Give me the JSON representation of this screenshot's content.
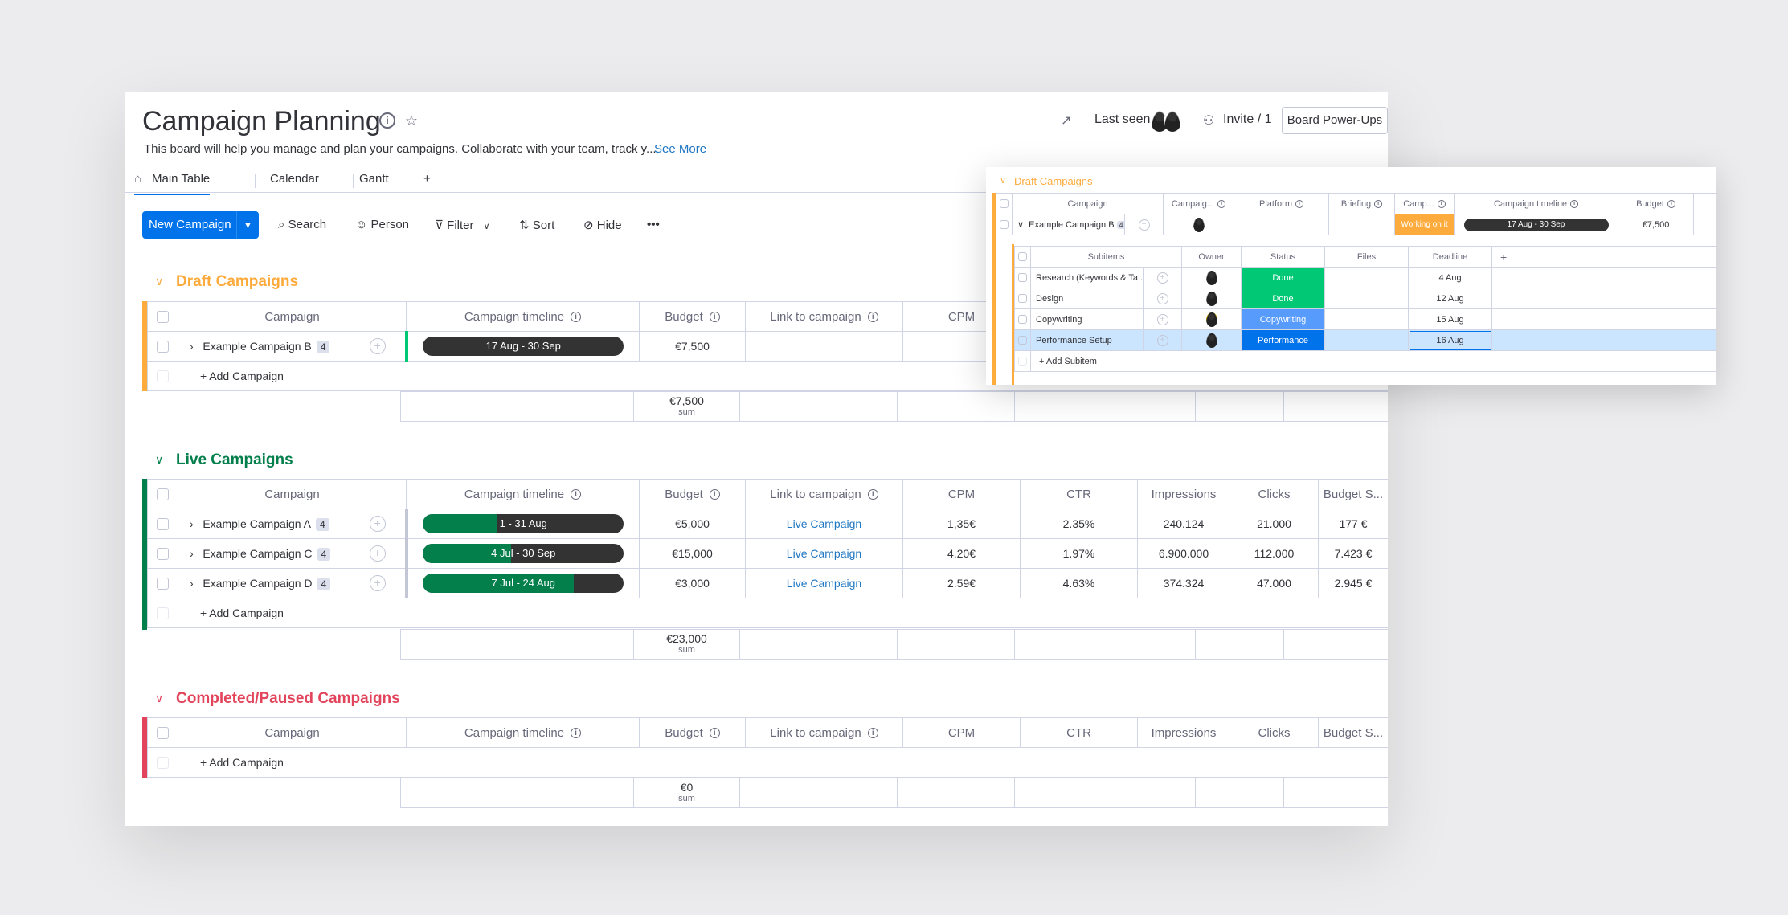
{
  "header": {
    "title": "Campaign Planning",
    "description": "This board will help you manage and plan your campaigns. Collaborate with your team, track y...",
    "see_more": "See More",
    "last_seen": "Last seen",
    "invite": "Invite / 1",
    "power_ups": "Board Power-Ups"
  },
  "tabs": [
    {
      "label": "Main Table",
      "active": true
    },
    {
      "label": "Calendar"
    },
    {
      "label": "Gantt"
    },
    {
      "label": "+"
    }
  ],
  "toolbar": {
    "new_item": "New Campaign",
    "search": "Search",
    "person": "Person",
    "filter": "Filter",
    "sort": "Sort",
    "hide": "Hide",
    "more": "•••"
  },
  "columns": {
    "campaign": "Campaign",
    "timeline": "Campaign timeline",
    "budget": "Budget",
    "link": "Link to campaign",
    "cpm": "CPM",
    "ctr": "CTR",
    "impressions": "Impressions",
    "clicks": "Clicks",
    "budget_spent": "Budget S..."
  },
  "groups": {
    "draft": {
      "title": "Draft Campaigns",
      "color": "#fdab3d",
      "rows": [
        {
          "name": "Example Campaign B",
          "count": "4",
          "timeline": "17 Aug - 30 Sep",
          "progress": 0,
          "budget": "€7,500"
        }
      ],
      "add": "+ Add Campaign",
      "sum": "€7,500",
      "sum_label": "sum"
    },
    "live": {
      "title": "Live Campaigns",
      "color": "#037f4c",
      "rows": [
        {
          "name": "Example Campaign A",
          "count": "4",
          "timeline": "1 - 31 Aug",
          "progress": 0.37,
          "budget": "€5,000",
          "link": "Live Campaign",
          "cpm": "1,35€",
          "ctr": "2.35%",
          "impressions": "240.124",
          "clicks": "21.000",
          "spent": "177 €"
        },
        {
          "name": "Example Campaign C",
          "count": "4",
          "timeline": "4 Jul - 30 Sep",
          "progress": 0.44,
          "budget": "€15,000",
          "link": "Live Campaign",
          "cpm": "4,20€",
          "ctr": "1.97%",
          "impressions": "6.900.000",
          "clicks": "112.000",
          "spent": "7.423 €"
        },
        {
          "name": "Example Campaign D",
          "count": "4",
          "timeline": "7 Jul - 24 Aug",
          "progress": 0.75,
          "budget": "€3,000",
          "link": "Live Campaign",
          "cpm": "2.59€",
          "ctr": "4.63%",
          "impressions": "374.324",
          "clicks": "47.000",
          "spent": "2.945 €"
        }
      ],
      "add": "+ Add Campaign",
      "sum": "€23,000",
      "sum_label": "sum"
    },
    "completed": {
      "title": "Completed/Paused Campaigns",
      "color": "#e2445c",
      "add": "+ Add Campaign",
      "sum": "€0",
      "sum_label": "sum"
    }
  },
  "popup": {
    "title": "Draft Campaigns",
    "columns": {
      "campaign": "Campaign",
      "campaign_short": "Campaig...",
      "platform": "Platform",
      "briefing": "Briefing",
      "camp": "Camp...",
      "timeline": "Campaign timeline",
      "budget": "Budget"
    },
    "row": {
      "name": "Example Campaign B",
      "count": "4",
      "status": "Working on it",
      "timeline": "17 Aug - 30 Sep",
      "budget": "€7,500"
    },
    "sub_columns": {
      "subitems": "Subitems",
      "owner": "Owner",
      "status": "Status",
      "files": "Files",
      "deadline": "Deadline",
      "add": "+"
    },
    "subitems": [
      {
        "name": "Research (Keywords & Ta...",
        "status": "Done",
        "status_color": "#00c875",
        "deadline": "4 Aug"
      },
      {
        "name": "Design",
        "status": "Done",
        "status_color": "#00c875",
        "deadline": "12 Aug"
      },
      {
        "name": "Copywriting",
        "status": "Copywriting",
        "status_color": "#579bfc",
        "deadline": "15 Aug"
      },
      {
        "name": "Performance Setup",
        "status": "Performance",
        "status_color": "#0073ea",
        "deadline": "16 Aug"
      }
    ],
    "add_subitem": "+ Add Subitem"
  }
}
